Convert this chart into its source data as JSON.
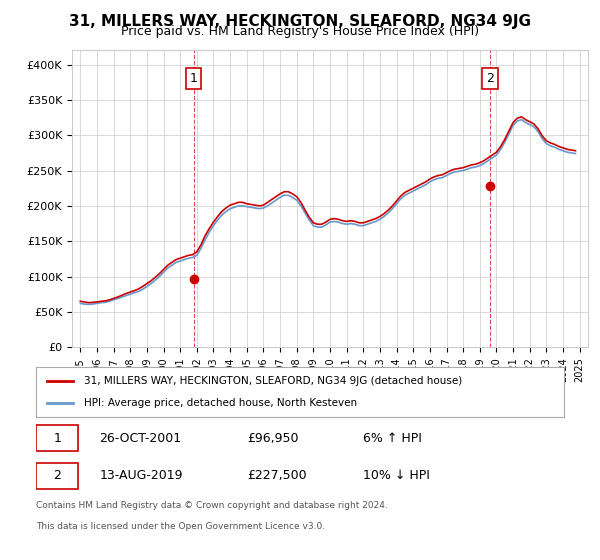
{
  "title": "31, MILLERS WAY, HECKINGTON, SLEAFORD, NG34 9JG",
  "subtitle": "Price paid vs. HM Land Registry's House Price Index (HPI)",
  "ylabel": "",
  "ylim": [
    0,
    420000
  ],
  "yticks": [
    0,
    50000,
    100000,
    150000,
    200000,
    250000,
    300000,
    350000,
    400000
  ],
  "ytick_labels": [
    "£0",
    "£50K",
    "£100K",
    "£150K",
    "£200K",
    "£250K",
    "£300K",
    "£350K",
    "£400K"
  ],
  "xlim_start": 1994.5,
  "xlim_end": 2025.5,
  "xticks": [
    1995,
    1996,
    1997,
    1998,
    1999,
    2000,
    2001,
    2002,
    2003,
    2004,
    2005,
    2006,
    2007,
    2008,
    2009,
    2010,
    2011,
    2012,
    2013,
    2014,
    2015,
    2016,
    2017,
    2018,
    2019,
    2020,
    2021,
    2022,
    2023,
    2024,
    2025
  ],
  "hpi_x": [
    1995.0,
    1995.25,
    1995.5,
    1995.75,
    1996.0,
    1996.25,
    1996.5,
    1996.75,
    1997.0,
    1997.25,
    1997.5,
    1997.75,
    1998.0,
    1998.25,
    1998.5,
    1998.75,
    1999.0,
    1999.25,
    1999.5,
    1999.75,
    2000.0,
    2000.25,
    2000.5,
    2000.75,
    2001.0,
    2001.25,
    2001.5,
    2001.75,
    2002.0,
    2002.25,
    2002.5,
    2002.75,
    2003.0,
    2003.25,
    2003.5,
    2003.75,
    2004.0,
    2004.25,
    2004.5,
    2004.75,
    2005.0,
    2005.25,
    2005.5,
    2005.75,
    2006.0,
    2006.25,
    2006.5,
    2006.75,
    2007.0,
    2007.25,
    2007.5,
    2007.75,
    2008.0,
    2008.25,
    2008.5,
    2008.75,
    2009.0,
    2009.25,
    2009.5,
    2009.75,
    2010.0,
    2010.25,
    2010.5,
    2010.75,
    2011.0,
    2011.25,
    2011.5,
    2011.75,
    2012.0,
    2012.25,
    2012.5,
    2012.75,
    2013.0,
    2013.25,
    2013.5,
    2013.75,
    2014.0,
    2014.25,
    2014.5,
    2014.75,
    2015.0,
    2015.25,
    2015.5,
    2015.75,
    2016.0,
    2016.25,
    2016.5,
    2016.75,
    2017.0,
    2017.25,
    2017.5,
    2017.75,
    2018.0,
    2018.25,
    2018.5,
    2018.75,
    2019.0,
    2019.25,
    2019.5,
    2019.75,
    2020.0,
    2020.25,
    2020.5,
    2020.75,
    2021.0,
    2021.25,
    2021.5,
    2021.75,
    2022.0,
    2022.25,
    2022.5,
    2022.75,
    2023.0,
    2023.25,
    2023.5,
    2023.75,
    2024.0,
    2024.25,
    2024.5,
    2024.75
  ],
  "hpi_y": [
    62000,
    61000,
    60500,
    61000,
    62000,
    63000,
    63500,
    65000,
    67000,
    69000,
    71000,
    73000,
    75000,
    77000,
    79000,
    82000,
    86000,
    90000,
    95000,
    100000,
    106000,
    112000,
    116000,
    120000,
    122000,
    124000,
    126000,
    127000,
    130000,
    140000,
    152000,
    163000,
    172000,
    180000,
    187000,
    192000,
    196000,
    198000,
    200000,
    200000,
    199000,
    198000,
    197000,
    196000,
    197000,
    200000,
    204000,
    208000,
    212000,
    215000,
    215000,
    212000,
    208000,
    200000,
    190000,
    180000,
    172000,
    170000,
    170000,
    173000,
    177000,
    178000,
    177000,
    175000,
    174000,
    175000,
    174000,
    172000,
    172000,
    174000,
    176000,
    178000,
    181000,
    185000,
    190000,
    196000,
    203000,
    210000,
    215000,
    218000,
    221000,
    224000,
    227000,
    230000,
    234000,
    237000,
    239000,
    240000,
    243000,
    246000,
    248000,
    249000,
    250000,
    252000,
    254000,
    255000,
    257000,
    260000,
    264000,
    268000,
    272000,
    280000,
    290000,
    302000,
    314000,
    320000,
    322000,
    318000,
    315000,
    312000,
    305000,
    295000,
    288000,
    285000,
    283000,
    280000,
    278000,
    276000,
    275000,
    274000
  ],
  "property_x": [
    1995.0,
    1995.25,
    1995.5,
    1995.75,
    1996.0,
    1996.25,
    1996.5,
    1996.75,
    1997.0,
    1997.25,
    1997.5,
    1997.75,
    1998.0,
    1998.25,
    1998.5,
    1998.75,
    1999.0,
    1999.25,
    1999.5,
    1999.75,
    2000.0,
    2000.25,
    2000.5,
    2000.75,
    2001.0,
    2001.25,
    2001.5,
    2001.75,
    2002.0,
    2002.25,
    2002.5,
    2002.75,
    2003.0,
    2003.25,
    2003.5,
    2003.75,
    2004.0,
    2004.25,
    2004.5,
    2004.75,
    2005.0,
    2005.25,
    2005.5,
    2005.75,
    2006.0,
    2006.25,
    2006.5,
    2006.75,
    2007.0,
    2007.25,
    2007.5,
    2007.75,
    2008.0,
    2008.25,
    2008.5,
    2008.75,
    2009.0,
    2009.25,
    2009.5,
    2009.75,
    2010.0,
    2010.25,
    2010.5,
    2010.75,
    2011.0,
    2011.25,
    2011.5,
    2011.75,
    2012.0,
    2012.25,
    2012.5,
    2012.75,
    2013.0,
    2013.25,
    2013.5,
    2013.75,
    2014.0,
    2014.25,
    2014.5,
    2014.75,
    2015.0,
    2015.25,
    2015.5,
    2015.75,
    2016.0,
    2016.25,
    2016.5,
    2016.75,
    2017.0,
    2017.25,
    2017.5,
    2017.75,
    2018.0,
    2018.25,
    2018.5,
    2018.75,
    2019.0,
    2019.25,
    2019.5,
    2019.75,
    2020.0,
    2020.25,
    2020.5,
    2020.75,
    2021.0,
    2021.25,
    2021.5,
    2021.75,
    2022.0,
    2022.25,
    2022.5,
    2022.75,
    2023.0,
    2023.25,
    2023.5,
    2023.75,
    2024.0,
    2024.25,
    2024.5,
    2024.75
  ],
  "property_y": [
    65000,
    64000,
    63000,
    63500,
    64000,
    65000,
    65500,
    67000,
    69000,
    71000,
    73500,
    76000,
    78000,
    80000,
    82500,
    86000,
    90000,
    94000,
    99000,
    104000,
    110000,
    116000,
    120000,
    124000,
    126000,
    128000,
    130000,
    131000,
    135000,
    145000,
    158000,
    168000,
    177000,
    185000,
    192000,
    197000,
    201000,
    203000,
    205000,
    205000,
    203000,
    202000,
    201000,
    200000,
    201000,
    205000,
    209000,
    213000,
    217000,
    220000,
    220000,
    217000,
    213000,
    205000,
    194000,
    184000,
    176000,
    174000,
    174000,
    177000,
    181000,
    182000,
    181000,
    179000,
    178000,
    179000,
    178000,
    176000,
    176000,
    178000,
    180000,
    182000,
    185000,
    189000,
    194000,
    200000,
    207000,
    214000,
    219000,
    222000,
    225000,
    228000,
    231000,
    234000,
    238000,
    241000,
    243000,
    244000,
    247000,
    250000,
    252000,
    253000,
    254000,
    256000,
    258000,
    259000,
    261000,
    264000,
    268000,
    272000,
    276000,
    284000,
    294000,
    306000,
    318000,
    324000,
    326000,
    322000,
    319000,
    316000,
    309000,
    299000,
    292000,
    289000,
    287000,
    284000,
    282000,
    280000,
    279000,
    278000
  ],
  "sale1_x": 2001.81,
  "sale1_y": 96950,
  "sale2_x": 2019.62,
  "sale2_y": 227500,
  "vline1_x": 2001.81,
  "vline2_x": 2019.62,
  "red_color": "#cc0000",
  "blue_color": "#6699cc",
  "legend1": "31, MILLERS WAY, HECKINGTON, SLEAFORD, NG34 9JG (detached house)",
  "legend2": "HPI: Average price, detached house, North Kesteven",
  "ann1_label": "1",
  "ann2_label": "2",
  "footer1": "Contains HM Land Registry data © Crown copyright and database right 2024.",
  "footer2": "This data is licensed under the Open Government Licence v3.0.",
  "table_row1_num": "1",
  "table_row1_date": "26-OCT-2001",
  "table_row1_price": "£96,950",
  "table_row1_hpi": "6% ↑ HPI",
  "table_row2_num": "2",
  "table_row2_date": "13-AUG-2019",
  "table_row2_price": "£227,500",
  "table_row2_hpi": "10% ↓ HPI",
  "bg_color": "#ffffff",
  "grid_color": "#cccccc"
}
